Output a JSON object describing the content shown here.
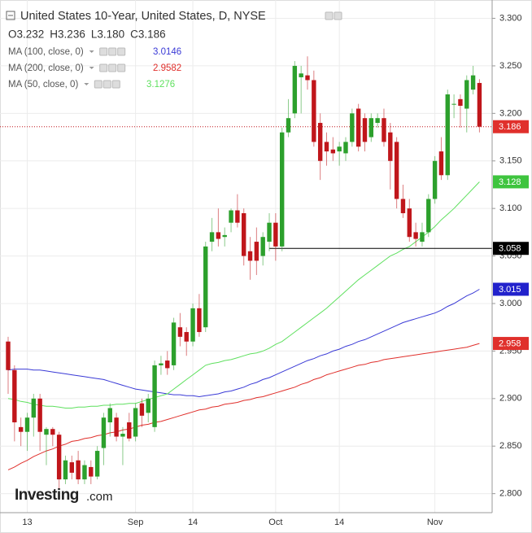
{
  "chart_data": {
    "type": "candlestick",
    "title": "United States 10-Year, United States, D, NYSE",
    "ohlc_labels": [
      "O3.232",
      "H3.236",
      "L3.180",
      "C3.186"
    ],
    "logo": [
      "Investing",
      ".com"
    ],
    "categories": [
      null,
      null,
      null,
      "13",
      null,
      null,
      null,
      null,
      null,
      null,
      null,
      null,
      null,
      null,
      null,
      null,
      null,
      null,
      null,
      null,
      "Sep",
      null,
      null,
      null,
      null,
      null,
      null,
      null,
      null,
      "14",
      null,
      null,
      null,
      null,
      null,
      null,
      null,
      null,
      null,
      null,
      null,
      null,
      "Oct",
      null,
      null,
      null,
      null,
      null,
      null,
      null,
      null,
      null,
      "14",
      null,
      null,
      null,
      null,
      null,
      null,
      null,
      null,
      null,
      null,
      null,
      null,
      null,
      null,
      "Nov",
      null,
      null,
      null,
      null,
      null,
      null,
      null
    ],
    "up_color": "#2ca02c",
    "down_color": "#c0161b",
    "open": [
      2.96,
      2.93,
      2.87,
      2.865,
      2.88,
      2.9,
      2.862,
      2.868,
      2.862,
      2.815,
      2.833,
      2.835,
      2.815,
      2.828,
      2.818,
      2.848,
      2.875,
      2.88,
      2.86,
      2.875,
      2.86,
      2.895,
      2.885,
      2.87,
      2.935,
      2.94,
      2.935,
      2.975,
      2.97,
      2.96,
      2.995,
      2.975,
      3.065,
      3.075,
      3.07,
      3.085,
      3.098,
      3.095,
      3.055,
      3.065,
      3.05,
      3.065,
      3.085,
      3.06,
      3.18,
      3.2,
      3.238,
      3.24,
      3.235,
      3.19,
      3.17,
      3.162,
      3.16,
      3.158,
      3.17,
      3.205,
      3.195,
      3.175,
      3.19,
      3.195,
      3.18,
      3.17,
      3.11,
      3.1,
      3.075,
      3.065,
      3.075,
      3.11,
      3.16,
      3.135,
      3.21,
      3.215,
      3.205,
      3.225,
      3.232
    ],
    "high": [
      2.965,
      2.935,
      2.88,
      2.885,
      2.905,
      2.905,
      2.87,
      2.87,
      2.865,
      2.84,
      2.84,
      2.845,
      2.835,
      2.835,
      2.85,
      2.885,
      2.895,
      2.885,
      2.87,
      2.885,
      2.895,
      2.9,
      2.905,
      2.94,
      2.945,
      2.95,
      2.985,
      2.99,
      2.975,
      3.0,
      3.01,
      3.065,
      3.09,
      3.1,
      3.08,
      3.1,
      3.115,
      3.1,
      3.07,
      3.08,
      3.075,
      3.095,
      3.095,
      3.185,
      3.215,
      3.255,
      3.25,
      3.26,
      3.245,
      3.2,
      3.18,
      3.175,
      3.17,
      3.175,
      3.205,
      3.21,
      3.2,
      3.2,
      3.2,
      3.205,
      3.19,
      3.175,
      3.125,
      3.11,
      3.085,
      3.085,
      3.115,
      3.155,
      3.175,
      3.225,
      3.22,
      3.22,
      3.24,
      3.25,
      3.236
    ],
    "low": [
      2.905,
      2.855,
      2.85,
      2.845,
      2.86,
      2.845,
      2.83,
      2.85,
      2.805,
      2.81,
      2.815,
      2.81,
      2.81,
      2.81,
      2.815,
      2.83,
      2.86,
      2.855,
      2.83,
      2.855,
      2.855,
      2.87,
      2.875,
      2.865,
      2.925,
      2.925,
      2.93,
      2.955,
      2.945,
      2.955,
      2.965,
      2.97,
      3.055,
      3.06,
      3.06,
      3.075,
      3.08,
      3.04,
      3.025,
      3.03,
      3.04,
      3.055,
      3.045,
      3.055,
      3.175,
      3.195,
      3.2,
      3.225,
      3.165,
      3.13,
      3.145,
      3.15,
      3.145,
      3.15,
      3.165,
      3.16,
      3.16,
      3.17,
      3.185,
      3.165,
      3.12,
      3.1,
      3.09,
      3.065,
      3.06,
      3.06,
      3.07,
      3.105,
      3.13,
      3.13,
      3.195,
      3.185,
      3.18,
      3.22,
      3.18
    ],
    "close": [
      2.93,
      2.875,
      2.865,
      2.88,
      2.9,
      2.865,
      2.868,
      2.862,
      2.815,
      2.835,
      2.822,
      2.815,
      2.83,
      2.818,
      2.845,
      2.88,
      2.89,
      2.86,
      2.863,
      2.858,
      2.89,
      2.882,
      2.9,
      2.935,
      2.937,
      2.932,
      2.98,
      2.965,
      2.96,
      2.995,
      2.97,
      3.06,
      3.075,
      3.068,
      3.072,
      3.098,
      3.085,
      3.05,
      3.045,
      3.045,
      3.07,
      3.085,
      3.06,
      3.18,
      3.195,
      3.25,
      3.242,
      3.235,
      3.17,
      3.15,
      3.16,
      3.158,
      3.165,
      3.17,
      3.2,
      3.165,
      3.17,
      3.195,
      3.195,
      3.17,
      3.15,
      3.11,
      3.095,
      3.07,
      3.068,
      3.075,
      3.11,
      3.15,
      3.135,
      3.22,
      3.21,
      3.208,
      3.235,
      3.24,
      3.186
    ],
    "series": [
      {
        "name": "MA (100, close, 0)",
        "color": "#3a3ad6",
        "legend_value": 3.0146,
        "values": [
          2.93,
          2.931,
          2.931,
          2.931,
          2.93,
          2.93,
          2.929,
          2.928,
          2.927,
          2.926,
          2.925,
          2.924,
          2.923,
          2.922,
          2.921,
          2.92,
          2.918,
          2.916,
          2.914,
          2.912,
          2.91,
          2.909,
          2.908,
          2.907,
          2.906,
          2.905,
          2.904,
          2.904,
          2.903,
          2.903,
          2.902,
          2.903,
          2.904,
          2.905,
          2.907,
          2.908,
          2.91,
          2.912,
          2.915,
          2.917,
          2.92,
          2.922,
          2.925,
          2.928,
          2.931,
          2.934,
          2.937,
          2.94,
          2.942,
          2.945,
          2.947,
          2.95,
          2.952,
          2.955,
          2.957,
          2.96,
          2.962,
          2.965,
          2.968,
          2.971,
          2.974,
          2.977,
          2.98,
          2.982,
          2.984,
          2.986,
          2.988,
          2.99,
          2.993,
          2.997,
          3.0,
          3.004,
          3.008,
          3.011,
          3.015
        ]
      },
      {
        "name": "MA (200, close, 0)",
        "color": "#e0302c",
        "legend_value": 2.9582,
        "values": [
          2.825,
          2.828,
          2.832,
          2.835,
          2.839,
          2.842,
          2.845,
          2.847,
          2.85,
          2.852,
          2.855,
          2.856,
          2.858,
          2.859,
          2.861,
          2.862,
          2.864,
          2.865,
          2.867,
          2.868,
          2.87,
          2.872,
          2.873,
          2.875,
          2.876,
          2.878,
          2.88,
          2.882,
          2.884,
          2.886,
          2.888,
          2.889,
          2.891,
          2.892,
          2.894,
          2.895,
          2.896,
          2.898,
          2.899,
          2.901,
          2.902,
          2.904,
          2.906,
          2.908,
          2.91,
          2.912,
          2.915,
          2.917,
          2.92,
          2.922,
          2.925,
          2.927,
          2.929,
          2.931,
          2.933,
          2.935,
          2.936,
          2.938,
          2.939,
          2.941,
          2.942,
          2.943,
          2.944,
          2.945,
          2.946,
          2.947,
          2.948,
          2.949,
          2.95,
          2.951,
          2.952,
          2.953,
          2.954,
          2.956,
          2.958
        ]
      },
      {
        "name": "MA (50, close, 0)",
        "color": "#5fe05f",
        "legend_value": 3.1276,
        "values": [
          2.9,
          2.899,
          2.897,
          2.896,
          2.894,
          2.893,
          2.892,
          2.892,
          2.891,
          2.89,
          2.89,
          2.891,
          2.891,
          2.892,
          2.892,
          2.893,
          2.893,
          2.894,
          2.894,
          2.895,
          2.895,
          2.897,
          2.899,
          2.901,
          2.903,
          2.905,
          2.91,
          2.915,
          2.92,
          2.925,
          2.93,
          2.935,
          2.937,
          2.938,
          2.94,
          2.941,
          2.943,
          2.945,
          2.947,
          2.948,
          2.95,
          2.953,
          2.957,
          2.96,
          2.965,
          2.97,
          2.975,
          2.98,
          2.985,
          2.99,
          2.995,
          3.001,
          3.007,
          3.013,
          3.019,
          3.025,
          3.03,
          3.035,
          3.04,
          3.045,
          3.05,
          3.053,
          3.057,
          3.06,
          3.065,
          3.07,
          3.075,
          3.081,
          3.088,
          3.094,
          3.1,
          3.107,
          3.114,
          3.121,
          3.128
        ]
      }
    ],
    "hline": {
      "value": 3.058,
      "color": "#000000"
    },
    "last_line_color": "#c0161b",
    "price_tags": [
      {
        "value": 3.186,
        "color": "#e0302c"
      },
      {
        "value": 3.128,
        "color": "#3ec43e"
      },
      {
        "value": 3.058,
        "color": "#000000"
      },
      {
        "value": 3.015,
        "color": "#2222cc"
      },
      {
        "value": 2.958,
        "color": "#e0302c"
      }
    ],
    "ylim": [
      2.78,
      3.315
    ],
    "yticks": [
      {
        "value": 2.8,
        "label": "2.800"
      },
      {
        "value": 2.85,
        "label": "2.850"
      },
      {
        "value": 2.9,
        "label": "2.900"
      },
      {
        "value": 2.95,
        "label": "2.950"
      },
      {
        "value": 3.0,
        "label": "3.000"
      },
      {
        "value": 3.05,
        "label": "3.050"
      },
      {
        "value": 3.1,
        "label": "3.100"
      },
      {
        "value": 3.15,
        "label": "3.150"
      },
      {
        "value": 3.2,
        "label": "3.200"
      },
      {
        "value": 3.25,
        "label": "3.250"
      },
      {
        "value": 3.3,
        "label": "3.300"
      }
    ],
    "grid": true
  }
}
